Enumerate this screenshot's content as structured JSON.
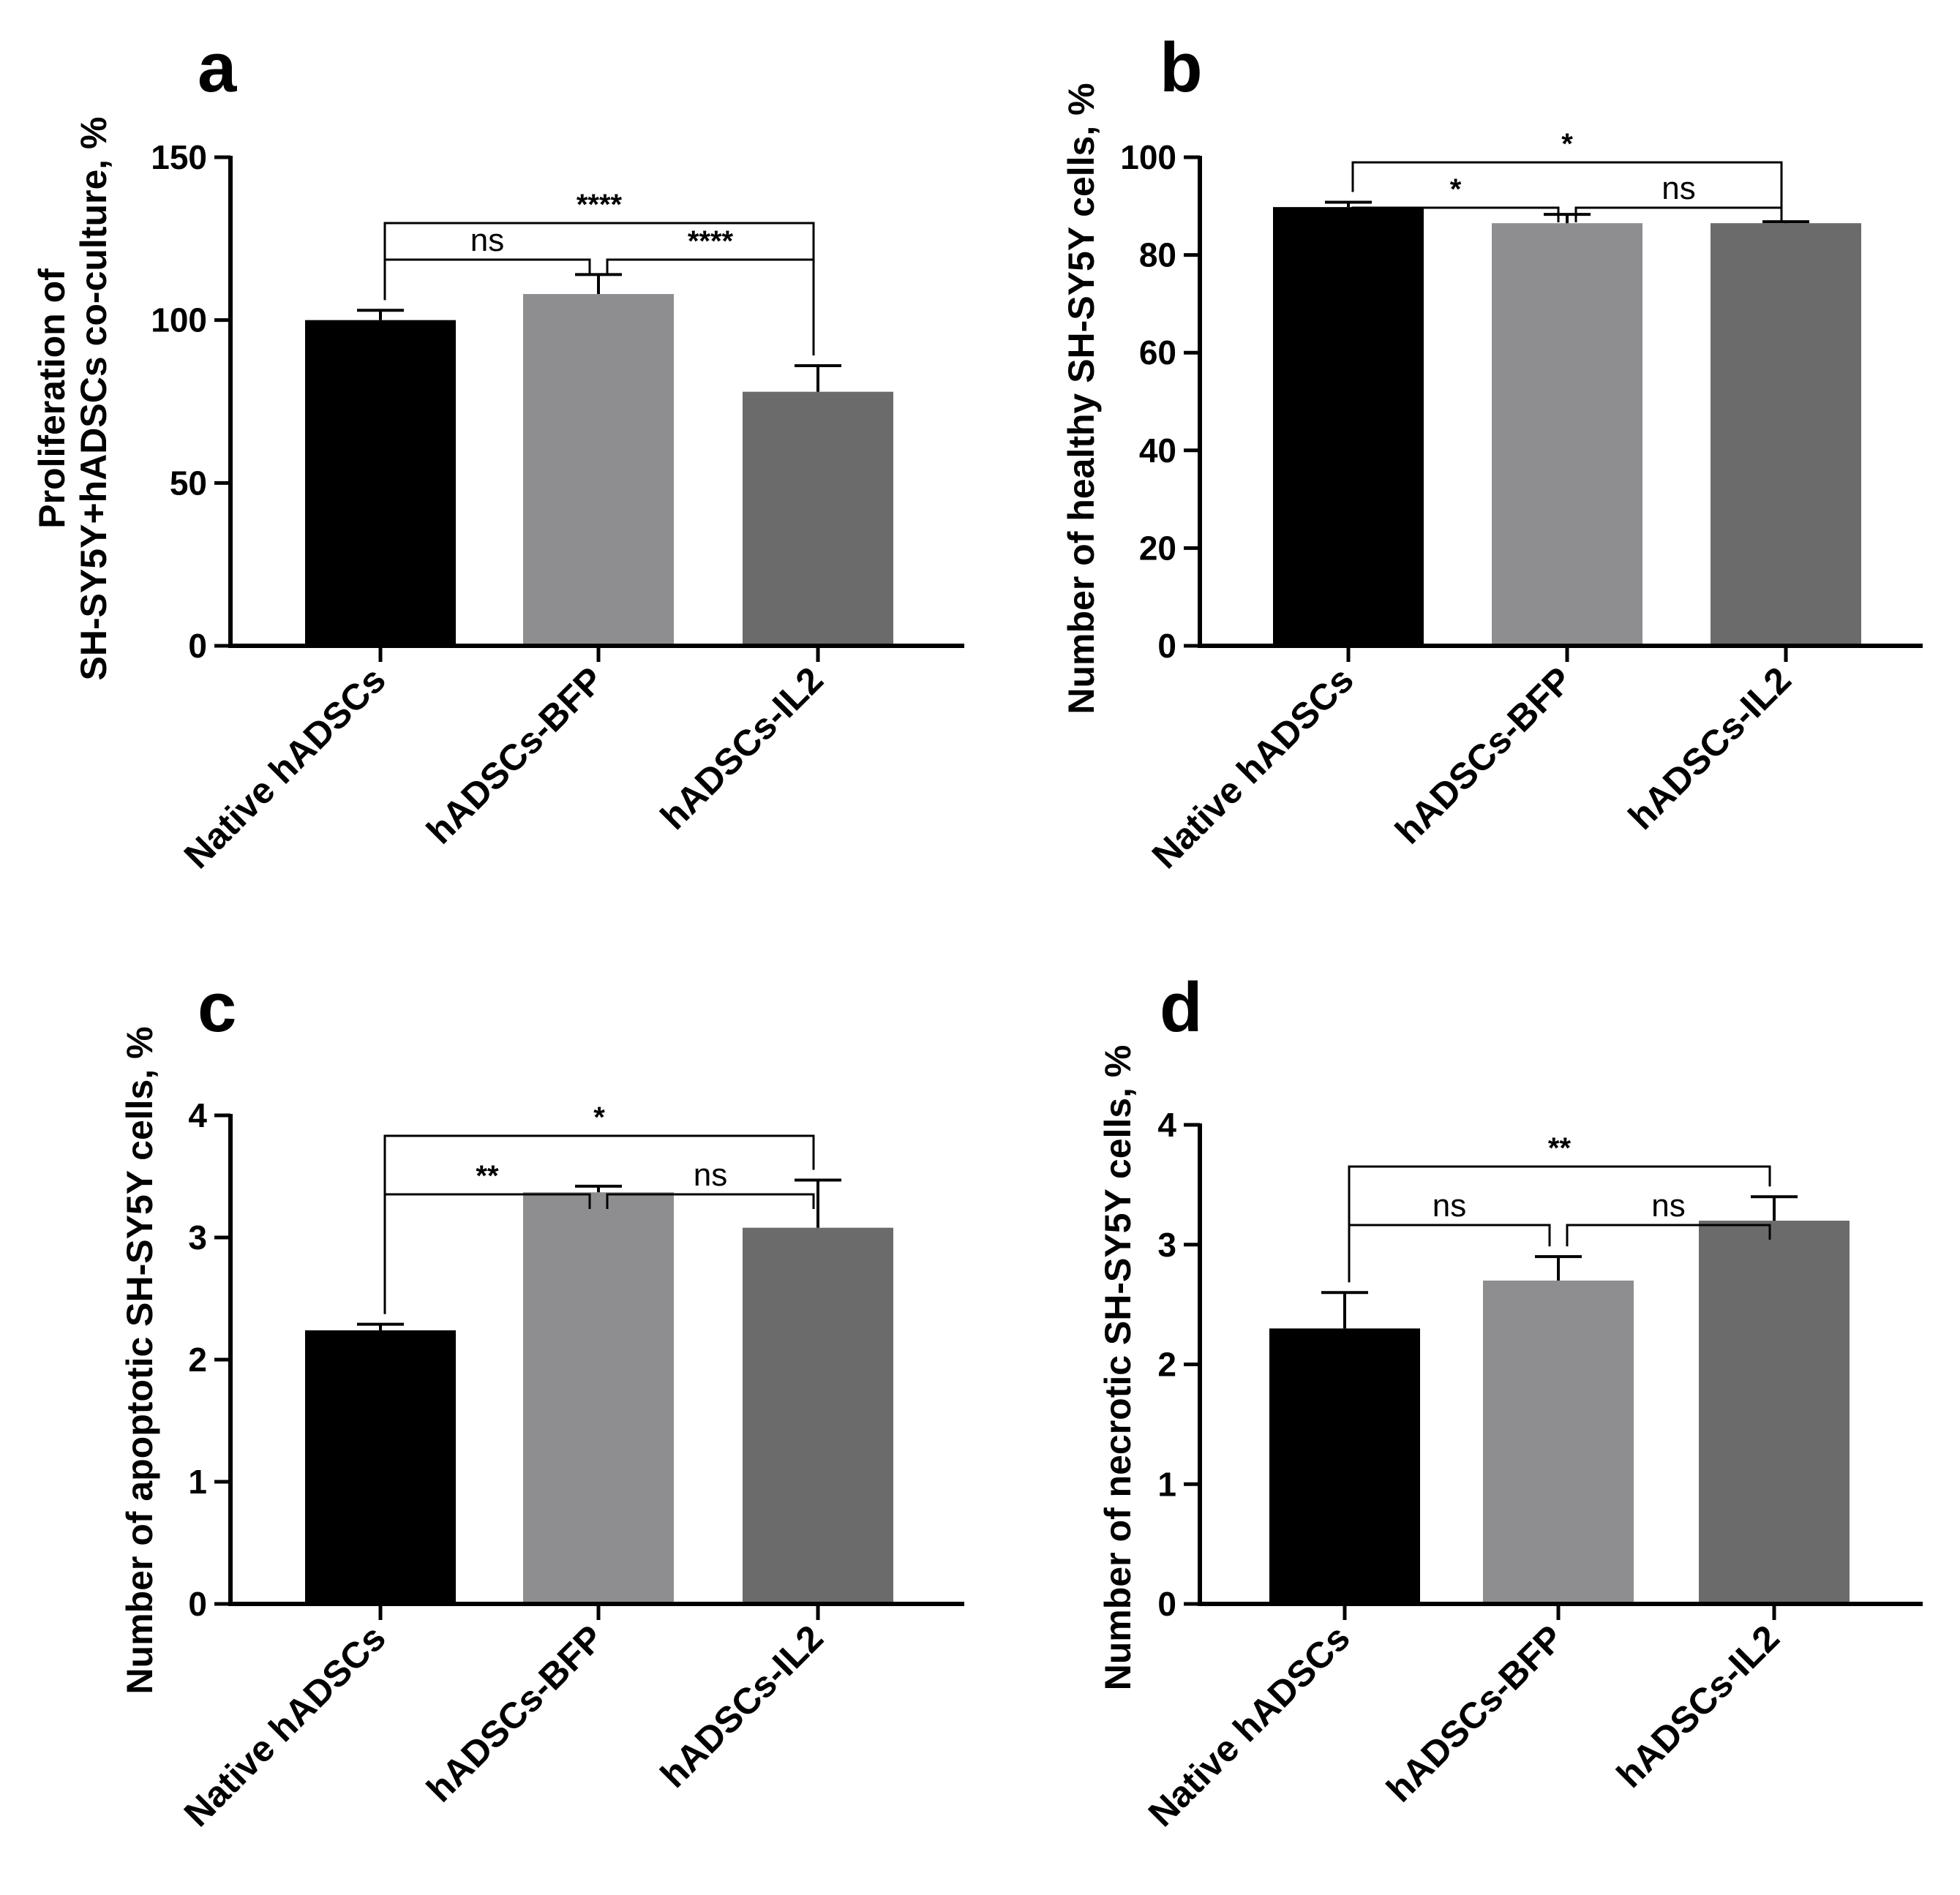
{
  "chart_data": [
    {
      "id": "a",
      "type": "bar",
      "panel_label": "a",
      "ylabel_lines": [
        "Proliferation of",
        "SH-SY5Y+hADSCs co-culture, %"
      ],
      "categories": [
        "Native hADSCs",
        "hADSCs-BFP",
        "hADSCs-IL2"
      ],
      "values": [
        100,
        108,
        78
      ],
      "errors": [
        3,
        6,
        8
      ],
      "colors": [
        "#000000",
        "#8e8e90",
        "#6b6b6b"
      ],
      "ylim": [
        0,
        150
      ],
      "yticks": [
        0,
        50,
        100,
        150
      ],
      "brackets": [
        {
          "from": 0,
          "to": 1,
          "label": "ns",
          "level": 1
        },
        {
          "from": 1,
          "to": 2,
          "label": "****",
          "level": 1
        },
        {
          "from": 0,
          "to": 2,
          "label": "****",
          "level": 2
        }
      ]
    },
    {
      "id": "b",
      "type": "bar",
      "panel_label": "b",
      "ylabel_lines": [
        "Number of healthy SH-SY5Y cells, %"
      ],
      "categories": [
        "Native hADSCs",
        "hADSCs-BFP",
        "hADSCs-IL2"
      ],
      "values": [
        89.8,
        86.5,
        86.5
      ],
      "errors": [
        1.0,
        1.8,
        0.3
      ],
      "colors": [
        "#000000",
        "#8e8e90",
        "#6b6b6b"
      ],
      "ylim": [
        0,
        100
      ],
      "yticks": [
        0,
        20,
        40,
        60,
        80,
        100
      ],
      "brackets": [
        {
          "from": 0,
          "to": 1,
          "label": "*",
          "level": 1
        },
        {
          "from": 1,
          "to": 2,
          "label": "ns",
          "level": 1
        },
        {
          "from": 0,
          "to": 2,
          "label": "*",
          "level": 2
        }
      ]
    },
    {
      "id": "c",
      "type": "bar",
      "panel_label": "c",
      "ylabel_lines": [
        "Number of apoptotic SH-SY5Y cells, %"
      ],
      "categories": [
        "Native hADSCs",
        "hADSCs-BFP",
        "hADSCs-IL2"
      ],
      "values": [
        2.24,
        3.37,
        3.08
      ],
      "errors": [
        0.05,
        0.05,
        0.39
      ],
      "colors": [
        "#000000",
        "#8e8e90",
        "#6b6b6b"
      ],
      "ylim": [
        0,
        4
      ],
      "yticks": [
        0,
        1,
        2,
        3,
        4
      ],
      "brackets": [
        {
          "from": 0,
          "to": 1,
          "label": "**",
          "level": 1
        },
        {
          "from": 1,
          "to": 2,
          "label": "ns",
          "level": 1
        },
        {
          "from": 0,
          "to": 2,
          "label": "*",
          "level": 2
        }
      ]
    },
    {
      "id": "d",
      "type": "bar",
      "panel_label": "d",
      "ylabel_lines": [
        "Number of necrotic SH-SY5Y cells, %"
      ],
      "categories": [
        "Native hADSCs",
        "hADSCs-BFP",
        "hADSCs-IL2"
      ],
      "values": [
        2.3,
        2.7,
        3.2
      ],
      "errors": [
        0.3,
        0.2,
        0.2
      ],
      "colors": [
        "#000000",
        "#8e8e90",
        "#6b6b6b"
      ],
      "ylim": [
        0,
        4
      ],
      "yticks": [
        0,
        1,
        2,
        3,
        4
      ],
      "brackets": [
        {
          "from": 0,
          "to": 1,
          "label": "ns",
          "level": 1
        },
        {
          "from": 1,
          "to": 2,
          "label": "ns",
          "level": 1
        },
        {
          "from": 0,
          "to": 2,
          "label": "**",
          "level": 2
        }
      ]
    }
  ]
}
